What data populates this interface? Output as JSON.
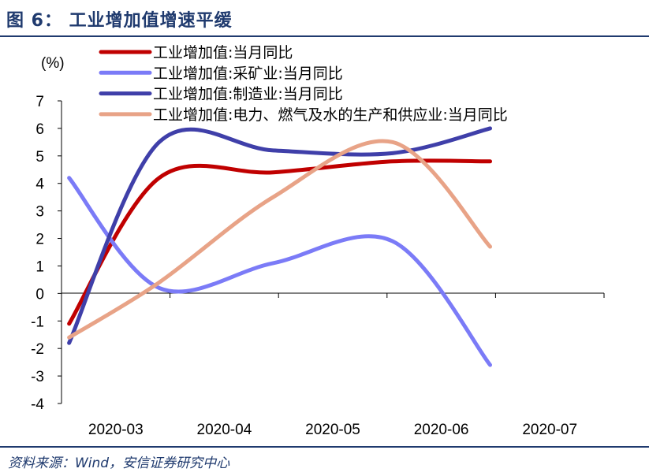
{
  "figure": {
    "title": "图 6：  工业增加值增速平缓",
    "source": "资料来源：Wind，安信证券研究中心"
  },
  "chart_data": {
    "type": "line",
    "ylabel": "(%)",
    "ylim": [
      -4,
      7
    ],
    "yticks": [
      -4,
      -3,
      -2,
      -1,
      0,
      1,
      2,
      3,
      4,
      5,
      6,
      7
    ],
    "categories": [
      "2020-03",
      "2020-04",
      "2020-05",
      "2020-06",
      "2020-07"
    ],
    "x_positions": [
      0.07,
      0.9,
      1.95,
      3.05,
      3.95
    ],
    "grid": false,
    "legend_position": "top",
    "smooth": true,
    "series": [
      {
        "name": "工业增加值:当月同比",
        "color": "#c00000",
        "values": [
          -1.1,
          4.2,
          4.4,
          4.8,
          4.8
        ]
      },
      {
        "name": "工业增加值:采矿业:当月同比",
        "color": "#7b7bf7",
        "values": [
          4.2,
          0.2,
          1.1,
          1.9,
          -2.6
        ]
      },
      {
        "name": "工业增加值:制造业:当月同比",
        "color": "#3f3fa9",
        "values": [
          -1.8,
          5.5,
          5.2,
          5.1,
          6.0
        ]
      },
      {
        "name": "工业增加值:电力、燃气及水的生产和供应业:当月同比",
        "color": "#e8a387",
        "values": [
          -1.6,
          0.4,
          3.5,
          5.5,
          1.7
        ]
      }
    ]
  }
}
